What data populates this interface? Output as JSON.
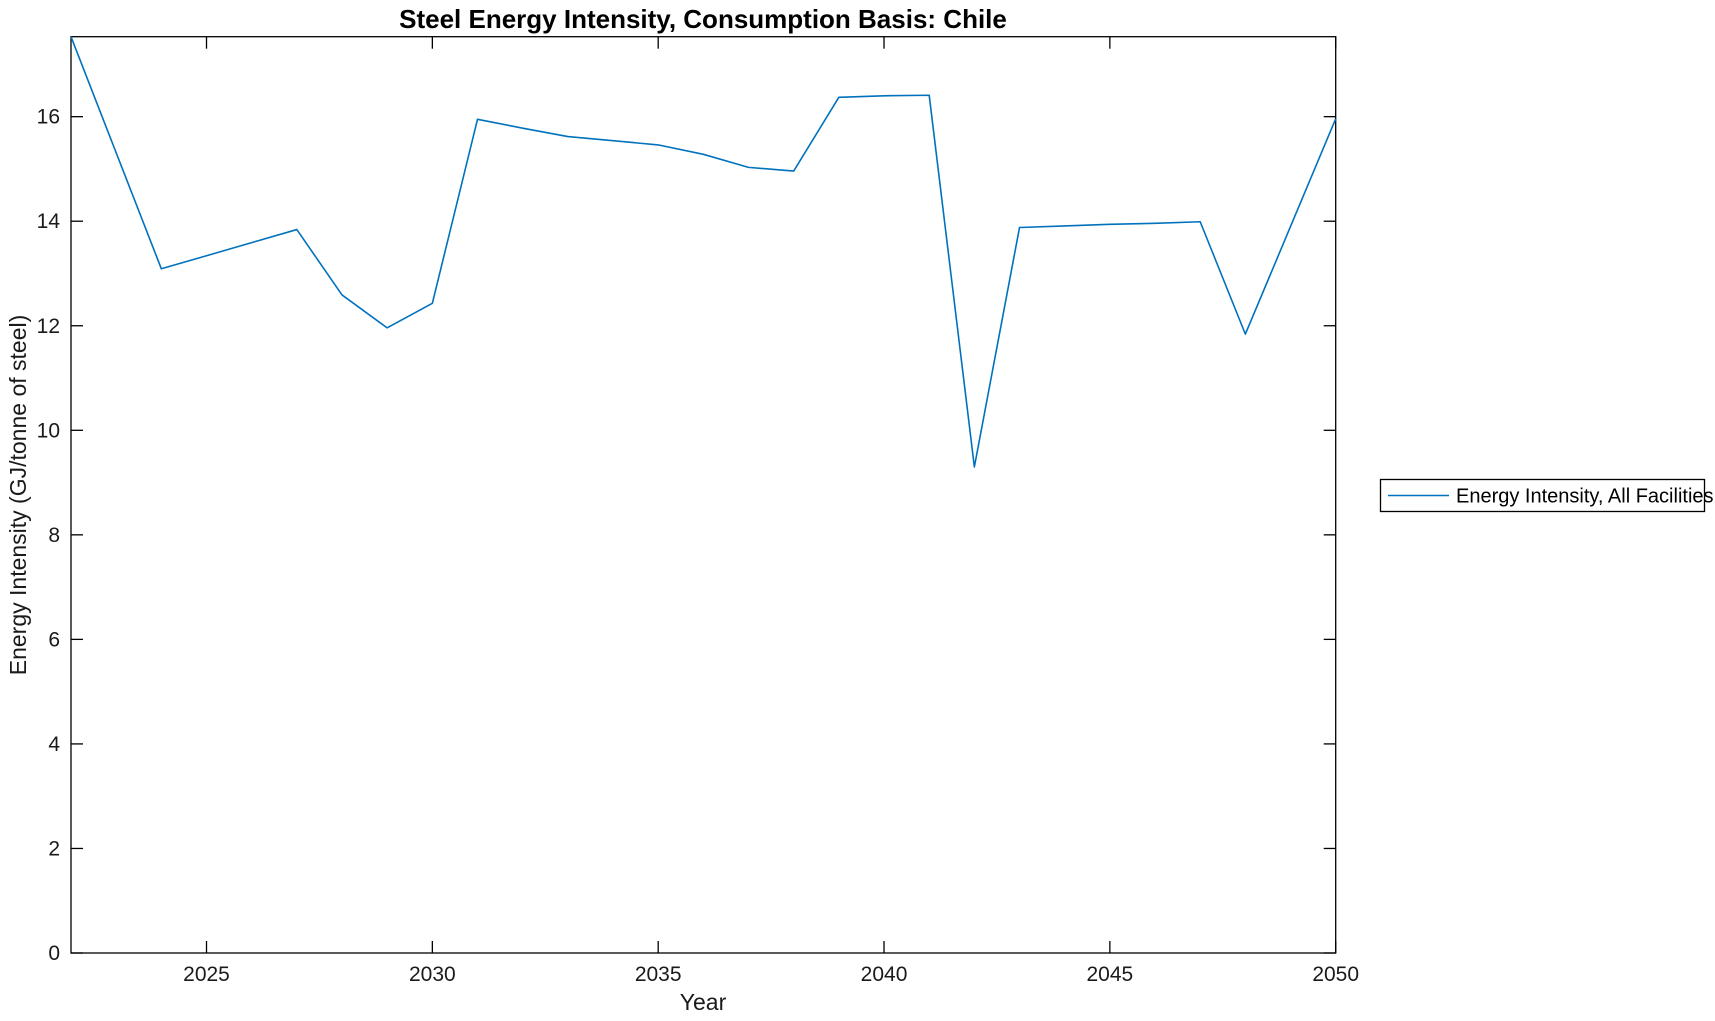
{
  "chart_data": {
    "type": "line",
    "title": "Steel Energy Intensity, Consumption Basis: Chile",
    "xlabel": "Year",
    "ylabel": "Energy Intensity (GJ/tonne of steel)",
    "x": [
      2022,
      2023,
      2024,
      2025,
      2026,
      2027,
      2028,
      2029,
      2030,
      2031,
      2032,
      2033,
      2034,
      2035,
      2036,
      2037,
      2038,
      2039,
      2040,
      2041,
      2042,
      2043,
      2044,
      2045,
      2046,
      2047,
      2048,
      2049,
      2050
    ],
    "series": [
      {
        "name": "Energy Intensity, All Facilities",
        "color": "#0072BD",
        "values": [
          17.53,
          15.31,
          13.09,
          13.34,
          13.59,
          13.84,
          12.59,
          11.96,
          12.43,
          15.95,
          15.78,
          15.62,
          15.54,
          15.46,
          15.28,
          15.03,
          14.96,
          16.37,
          16.4,
          16.41,
          9.3,
          13.88,
          13.91,
          13.94,
          13.96,
          13.99,
          11.84,
          13.9,
          15.96
        ]
      }
    ],
    "xlim": [
      2022,
      2050
    ],
    "ylim": [
      0,
      17.53
    ],
    "x_ticks": [
      2025,
      2030,
      2035,
      2040,
      2045,
      2050
    ],
    "y_ticks": [
      0,
      2,
      4,
      6,
      8,
      10,
      12,
      14,
      16
    ],
    "grid": false,
    "legend_position": "right-outside",
    "legend_entries": [
      "Energy Intensity, All Facilities"
    ],
    "axis_color": "#000000",
    "background_color": "#ffffff"
  }
}
